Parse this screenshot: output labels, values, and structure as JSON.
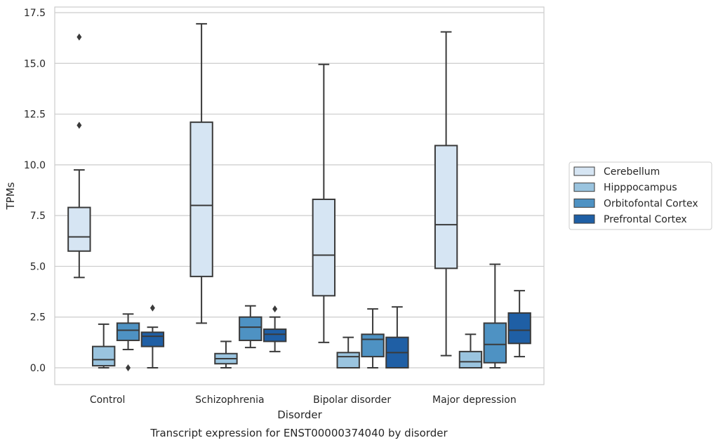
{
  "chart_data": {
    "type": "box",
    "title": "",
    "caption": "Transcript expression for ENST00000374040 by disorder",
    "xlabel": "Disorder",
    "ylabel": "TPMs",
    "ylim": [
      -0.8,
      17.7
    ],
    "yticks": [
      "0.0",
      "2.5",
      "5.0",
      "7.5",
      "10.0",
      "12.5",
      "15.0",
      "17.5"
    ],
    "ytick_values": [
      0,
      2.5,
      5,
      7.5,
      10,
      12.5,
      15,
      17.5
    ],
    "grid": "horizontal",
    "legend_position": "right",
    "categories": [
      "Control",
      "Schizophrenia",
      "Bipolar disorder",
      "Major depression"
    ],
    "series": [
      {
        "name": "Cerebellum",
        "color": "#d6e5f3",
        "boxes": [
          {
            "whisker_low": 4.45,
            "q1": 5.75,
            "median": 6.45,
            "q3": 7.9,
            "whisker_high": 9.75,
            "outliers": [
              11.95,
              16.3
            ]
          },
          {
            "whisker_low": 2.2,
            "q1": 4.5,
            "median": 8.0,
            "q3": 12.1,
            "whisker_high": 16.95,
            "outliers": []
          },
          {
            "whisker_low": 1.25,
            "q1": 3.55,
            "median": 5.55,
            "q3": 8.3,
            "whisker_high": 14.95,
            "outliers": []
          },
          {
            "whisker_low": 0.6,
            "q1": 4.9,
            "median": 7.05,
            "q3": 10.95,
            "whisker_high": 16.55,
            "outliers": []
          }
        ]
      },
      {
        "name": "Hipppocampus",
        "color": "#9ac4df",
        "boxes": [
          {
            "whisker_low": 0.0,
            "q1": 0.1,
            "median": 0.4,
            "q3": 1.05,
            "whisker_high": 2.15,
            "outliers": []
          },
          {
            "whisker_low": 0.0,
            "q1": 0.2,
            "median": 0.45,
            "q3": 0.7,
            "whisker_high": 1.3,
            "outliers": []
          },
          {
            "whisker_low": 0.0,
            "q1": 0.0,
            "median": 0.55,
            "q3": 0.75,
            "whisker_high": 1.5,
            "outliers": []
          },
          {
            "whisker_low": 0.0,
            "q1": 0.0,
            "median": 0.3,
            "q3": 0.8,
            "whisker_high": 1.65,
            "outliers": []
          }
        ]
      },
      {
        "name": "Orbitofontal Cortex",
        "color": "#4e92c3",
        "boxes": [
          {
            "whisker_low": 0.9,
            "q1": 1.35,
            "median": 1.85,
            "q3": 2.2,
            "whisker_high": 2.65,
            "outliers": [
              0.0
            ]
          },
          {
            "whisker_low": 1.0,
            "q1": 1.35,
            "median": 2.0,
            "q3": 2.5,
            "whisker_high": 3.05,
            "outliers": []
          },
          {
            "whisker_low": 0.0,
            "q1": 0.55,
            "median": 1.4,
            "q3": 1.65,
            "whisker_high": 2.9,
            "outliers": []
          },
          {
            "whisker_low": 0.0,
            "q1": 0.25,
            "median": 1.15,
            "q3": 2.2,
            "whisker_high": 5.1,
            "outliers": []
          }
        ]
      },
      {
        "name": "Prefrontal Cortex",
        "color": "#1f5fa5",
        "boxes": [
          {
            "whisker_low": 0.0,
            "q1": 1.05,
            "median": 1.55,
            "q3": 1.75,
            "whisker_high": 2.0,
            "outliers": [
              2.95
            ]
          },
          {
            "whisker_low": 0.8,
            "q1": 1.3,
            "median": 1.65,
            "q3": 1.9,
            "whisker_high": 2.5,
            "outliers": [
              2.9
            ]
          },
          {
            "whisker_low": 0.0,
            "q1": 0.0,
            "median": 0.75,
            "q3": 1.5,
            "whisker_high": 3.0,
            "outliers": []
          },
          {
            "whisker_low": 0.55,
            "q1": 1.2,
            "median": 1.85,
            "q3": 2.7,
            "whisker_high": 3.8,
            "outliers": []
          }
        ]
      }
    ]
  }
}
